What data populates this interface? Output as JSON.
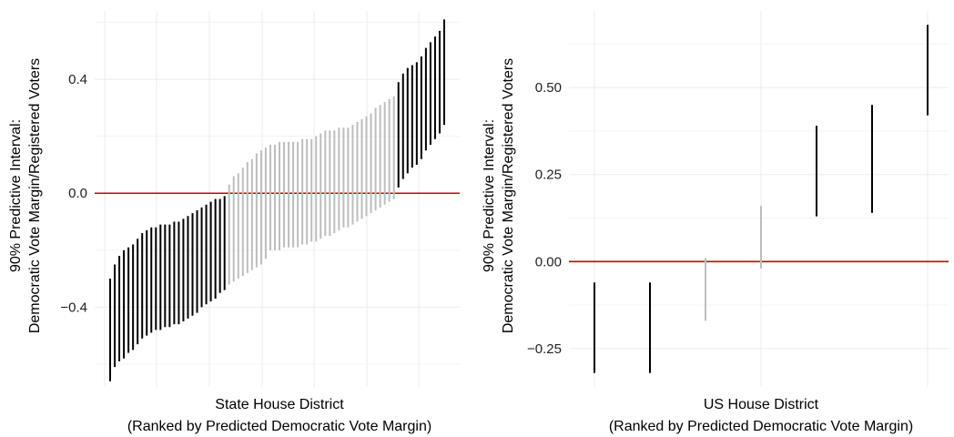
{
  "chart_data": [
    {
      "type": "errorbar",
      "xlabel_line1": "State House District",
      "xlabel_line2": "(Ranked by Predicted Democratic Vote Margin)",
      "ylabel_line1": "90% Predictive Interval:",
      "ylabel_line2": "Democratic Vote Margin/Registered Voters",
      "ylim": [
        -0.68,
        0.64
      ],
      "yticks": [
        -0.4,
        0.0,
        0.4
      ],
      "ytick_labels": [
        "−0.4",
        "0.0",
        "0.4"
      ],
      "reference_line": 0,
      "grid": true,
      "colors": {
        "significant": "#000000",
        "uncertain": "#bdbdbd",
        "reference": "#cc0000"
      },
      "intervals": [
        {
          "rank": 1,
          "low": -0.66,
          "high": -0.3
        },
        {
          "rank": 2,
          "low": -0.61,
          "high": -0.25
        },
        {
          "rank": 3,
          "low": -0.59,
          "high": -0.22
        },
        {
          "rank": 4,
          "low": -0.58,
          "high": -0.2
        },
        {
          "rank": 5,
          "low": -0.56,
          "high": -0.19
        },
        {
          "rank": 6,
          "low": -0.55,
          "high": -0.18
        },
        {
          "rank": 7,
          "low": -0.53,
          "high": -0.16
        },
        {
          "rank": 8,
          "low": -0.51,
          "high": -0.14
        },
        {
          "rank": 9,
          "low": -0.5,
          "high": -0.13
        },
        {
          "rank": 10,
          "low": -0.49,
          "high": -0.12
        },
        {
          "rank": 11,
          "low": -0.48,
          "high": -0.12
        },
        {
          "rank": 12,
          "low": -0.48,
          "high": -0.11
        },
        {
          "rank": 13,
          "low": -0.47,
          "high": -0.11
        },
        {
          "rank": 14,
          "low": -0.47,
          "high": -0.11
        },
        {
          "rank": 15,
          "low": -0.46,
          "high": -0.1
        },
        {
          "rank": 16,
          "low": -0.46,
          "high": -0.1
        },
        {
          "rank": 17,
          "low": -0.45,
          "high": -0.09
        },
        {
          "rank": 18,
          "low": -0.44,
          "high": -0.08
        },
        {
          "rank": 19,
          "low": -0.43,
          "high": -0.07
        },
        {
          "rank": 20,
          "low": -0.42,
          "high": -0.06
        },
        {
          "rank": 21,
          "low": -0.4,
          "high": -0.05
        },
        {
          "rank": 22,
          "low": -0.39,
          "high": -0.04
        },
        {
          "rank": 23,
          "low": -0.38,
          "high": -0.03
        },
        {
          "rank": 24,
          "low": -0.37,
          "high": -0.02
        },
        {
          "rank": 25,
          "low": -0.35,
          "high": -0.02
        },
        {
          "rank": 26,
          "low": -0.34,
          "high": -0.01
        },
        {
          "rank": 27,
          "low": -0.32,
          "high": 0.03
        },
        {
          "rank": 28,
          "low": -0.31,
          "high": 0.06
        },
        {
          "rank": 29,
          "low": -0.3,
          "high": 0.07
        },
        {
          "rank": 30,
          "low": -0.29,
          "high": 0.09
        },
        {
          "rank": 31,
          "low": -0.28,
          "high": 0.11
        },
        {
          "rank": 32,
          "low": -0.27,
          "high": 0.12
        },
        {
          "rank": 33,
          "low": -0.26,
          "high": 0.14
        },
        {
          "rank": 34,
          "low": -0.25,
          "high": 0.15
        },
        {
          "rank": 35,
          "low": -0.23,
          "high": 0.16
        },
        {
          "rank": 36,
          "low": -0.2,
          "high": 0.17
        },
        {
          "rank": 37,
          "low": -0.2,
          "high": 0.17
        },
        {
          "rank": 38,
          "low": -0.2,
          "high": 0.18
        },
        {
          "rank": 39,
          "low": -0.19,
          "high": 0.18
        },
        {
          "rank": 40,
          "low": -0.19,
          "high": 0.18
        },
        {
          "rank": 41,
          "low": -0.19,
          "high": 0.18
        },
        {
          "rank": 42,
          "low": -0.19,
          "high": 0.18
        },
        {
          "rank": 43,
          "low": -0.18,
          "high": 0.19
        },
        {
          "rank": 44,
          "low": -0.18,
          "high": 0.19
        },
        {
          "rank": 45,
          "low": -0.17,
          "high": 0.19
        },
        {
          "rank": 46,
          "low": -0.17,
          "high": 0.2
        },
        {
          "rank": 47,
          "low": -0.16,
          "high": 0.21
        },
        {
          "rank": 48,
          "low": -0.15,
          "high": 0.22
        },
        {
          "rank": 49,
          "low": -0.15,
          "high": 0.22
        },
        {
          "rank": 50,
          "low": -0.14,
          "high": 0.22
        },
        {
          "rank": 51,
          "low": -0.13,
          "high": 0.23
        },
        {
          "rank": 52,
          "low": -0.12,
          "high": 0.23
        },
        {
          "rank": 53,
          "low": -0.12,
          "high": 0.23
        },
        {
          "rank": 54,
          "low": -0.11,
          "high": 0.24
        },
        {
          "rank": 55,
          "low": -0.1,
          "high": 0.25
        },
        {
          "rank": 56,
          "low": -0.09,
          "high": 0.26
        },
        {
          "rank": 57,
          "low": -0.08,
          "high": 0.27
        },
        {
          "rank": 58,
          "low": -0.07,
          "high": 0.28
        },
        {
          "rank": 59,
          "low": -0.06,
          "high": 0.3
        },
        {
          "rank": 60,
          "low": -0.05,
          "high": 0.31
        },
        {
          "rank": 61,
          "low": -0.04,
          "high": 0.32
        },
        {
          "rank": 62,
          "low": -0.03,
          "high": 0.33
        },
        {
          "rank": 63,
          "low": -0.02,
          "high": 0.34
        },
        {
          "rank": 64,
          "low": 0.02,
          "high": 0.39
        },
        {
          "rank": 65,
          "low": 0.05,
          "high": 0.42
        },
        {
          "rank": 66,
          "low": 0.07,
          "high": 0.44
        },
        {
          "rank": 67,
          "low": 0.09,
          "high": 0.45
        },
        {
          "rank": 68,
          "low": 0.1,
          "high": 0.46
        },
        {
          "rank": 69,
          "low": 0.12,
          "high": 0.48
        },
        {
          "rank": 70,
          "low": 0.15,
          "high": 0.51
        },
        {
          "rank": 71,
          "low": 0.17,
          "high": 0.53
        },
        {
          "rank": 72,
          "low": 0.19,
          "high": 0.55
        },
        {
          "rank": 73,
          "low": 0.21,
          "high": 0.57
        },
        {
          "rank": 74,
          "low": 0.24,
          "high": 0.61
        }
      ]
    },
    {
      "type": "errorbar",
      "xlabel_line1": "US House District",
      "xlabel_line2": "(Ranked by Predicted Democratic Vote Margin)",
      "ylabel_line1": "90% Predictive Interval:",
      "ylabel_line2": "Democratic Vote Margin/Registered Voters",
      "ylim": [
        -0.36,
        0.72
      ],
      "yticks": [
        -0.25,
        0.0,
        0.25,
        0.5
      ],
      "ytick_labels": [
        "−0.25",
        "0.00",
        "0.25",
        "0.50"
      ],
      "reference_line": 0,
      "grid": true,
      "colors": {
        "significant": "#000000",
        "uncertain": "#bdbdbd",
        "reference": "#cc0000"
      },
      "intervals": [
        {
          "rank": 1,
          "low": -0.32,
          "high": -0.06
        },
        {
          "rank": 2,
          "low": -0.32,
          "high": -0.06
        },
        {
          "rank": 3,
          "low": -0.17,
          "high": 0.01
        },
        {
          "rank": 4,
          "low": -0.02,
          "high": 0.16
        },
        {
          "rank": 5,
          "low": 0.13,
          "high": 0.39
        },
        {
          "rank": 6,
          "low": 0.14,
          "high": 0.45
        },
        {
          "rank": 7,
          "low": 0.42,
          "high": 0.68
        }
      ]
    }
  ]
}
